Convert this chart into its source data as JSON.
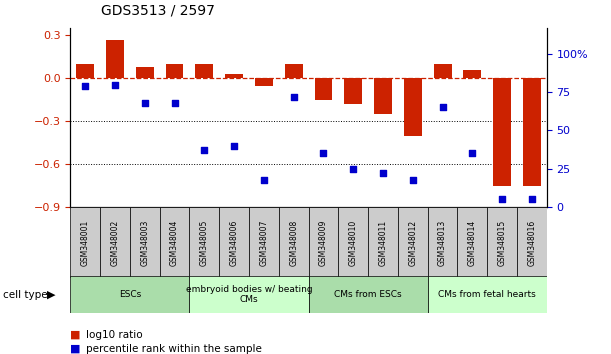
{
  "title": "GDS3513 / 2597",
  "samples": [
    "GSM348001",
    "GSM348002",
    "GSM348003",
    "GSM348004",
    "GSM348005",
    "GSM348006",
    "GSM348007",
    "GSM348008",
    "GSM348009",
    "GSM348010",
    "GSM348011",
    "GSM348012",
    "GSM348013",
    "GSM348014",
    "GSM348015",
    "GSM348016"
  ],
  "log10_ratio": [
    0.1,
    0.27,
    0.08,
    0.1,
    0.1,
    0.03,
    -0.05,
    0.1,
    -0.15,
    -0.18,
    -0.25,
    -0.4,
    0.1,
    0.06,
    -0.75,
    -0.75
  ],
  "percentile_rank": [
    79,
    80,
    68,
    68,
    37,
    40,
    18,
    72,
    35,
    25,
    22,
    18,
    65,
    35,
    5,
    5
  ],
  "cell_type_groups": [
    {
      "label": "ESCs",
      "start": 0,
      "end": 4,
      "color": "#aaddaa"
    },
    {
      "label": "embryoid bodies w/ beating\nCMs",
      "start": 4,
      "end": 8,
      "color": "#ccffcc"
    },
    {
      "label": "CMs from ESCs",
      "start": 8,
      "end": 12,
      "color": "#aaddaa"
    },
    {
      "label": "CMs from fetal hearts",
      "start": 12,
      "end": 16,
      "color": "#ccffcc"
    }
  ],
  "bar_color": "#cc2200",
  "dot_color": "#0000cc",
  "ylim_left": [
    -0.9,
    0.35
  ],
  "ylim_right": [
    0,
    116.67
  ],
  "yticks_left": [
    -0.9,
    -0.6,
    -0.3,
    0.0,
    0.3
  ],
  "yticks_right": [
    0,
    25,
    50,
    75,
    100
  ],
  "hline_y": 0.0,
  "dotted_lines": [
    -0.3,
    -0.6
  ],
  "background_color": "#ffffff",
  "sample_box_color": "#cccccc",
  "title_fontsize": 10,
  "tick_fontsize": 8,
  "bar_width": 0.6
}
